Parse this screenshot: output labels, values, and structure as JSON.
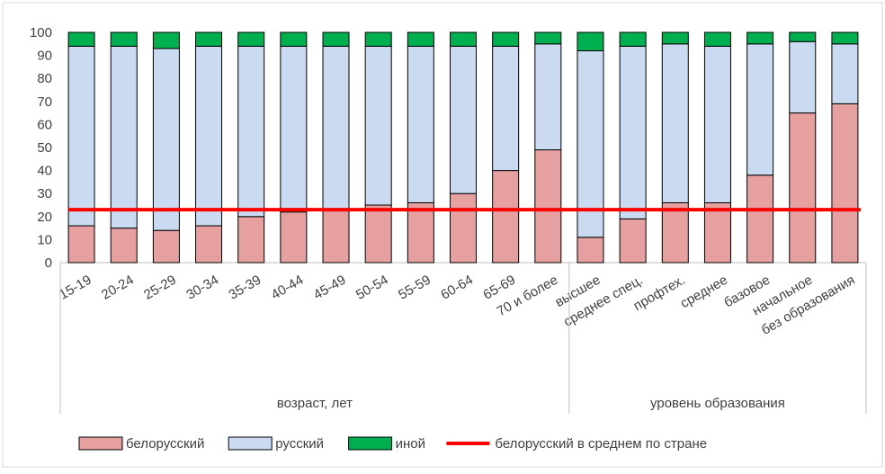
{
  "chart_data": {
    "type": "bar",
    "stacked": true,
    "categories": [
      "15-19",
      "20-24",
      "25-29",
      "30-34",
      "35-39",
      "40-44",
      "45-49",
      "50-54",
      "55-59",
      "60-64",
      "65-69",
      "70 и более",
      "высшее",
      "среднее спец.",
      "профтех.",
      "среднее",
      "базовое",
      "начальное",
      "без образования"
    ],
    "groups": [
      {
        "label": "возраст, лет",
        "count": 12
      },
      {
        "label": "уровень образования",
        "count": 7
      }
    ],
    "series": [
      {
        "name": "белорусский",
        "color": "#e6a0a0",
        "values": [
          16,
          15,
          14,
          16,
          20,
          22,
          23,
          25,
          26,
          30,
          40,
          49,
          11,
          19,
          26,
          26,
          38,
          65,
          69
        ]
      },
      {
        "name": "русский",
        "color": "#c9daf1",
        "values": [
          78,
          79,
          79,
          78,
          74,
          72,
          71,
          69,
          68,
          64,
          54,
          46,
          81,
          75,
          69,
          68,
          57,
          31,
          26
        ]
      },
      {
        "name": "иной",
        "color": "#00b050",
        "values": [
          6,
          6,
          7,
          6,
          6,
          6,
          6,
          6,
          6,
          6,
          6,
          5,
          8,
          6,
          5,
          6,
          5,
          4,
          5
        ]
      }
    ],
    "reference_line": {
      "name": "белорусский в среднем по стране",
      "value": 23,
      "color": "#ff0000"
    },
    "ylim": [
      0,
      100
    ],
    "yticks": [
      0,
      10,
      20,
      30,
      40,
      50,
      60,
      70,
      80,
      90,
      100
    ],
    "legend_position": "bottom",
    "grid": false
  }
}
